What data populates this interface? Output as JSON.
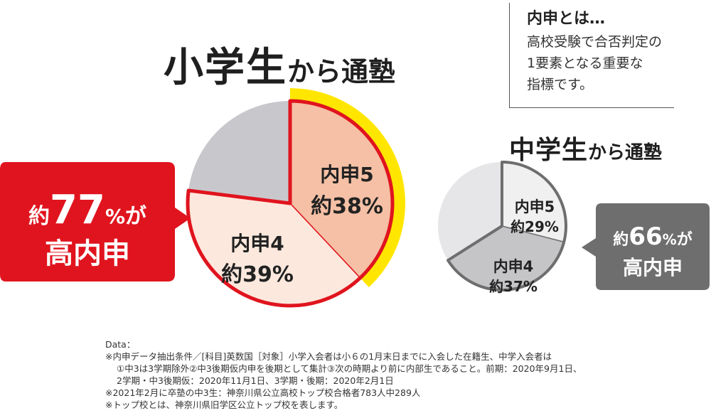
{
  "title_left": {
    "big": "小学生",
    "small": "から通塾"
  },
  "title_right": {
    "big": "中学生",
    "small": "から通塾"
  },
  "definition": {
    "title": "内申とは…",
    "lines": [
      "高校受験で合否判定の",
      "1要素となる重要な",
      "指標です。"
    ]
  },
  "colors": {
    "red": "#e0141e",
    "yellow": "#ffe600",
    "slice5_left": "#f5c0a5",
    "slice4_left": "#fde8dd",
    "other_left": "#c8c8cc",
    "dark_gray": "#6e6e6e",
    "slice5_right": "#f0f0f0",
    "slice4_right": "#c5c5c8",
    "other_right": "#e6e6e8"
  },
  "chart_data": [
    {
      "type": "pie",
      "title": "小学生から通塾",
      "slices": [
        {
          "label": "内申5",
          "value_label": "約38%",
          "value": 38
        },
        {
          "label": "内申4",
          "value_label": "約39%",
          "value": 39
        },
        {
          "label": "",
          "value_label": "",
          "value": 23
        }
      ],
      "callout": {
        "prefix": "約",
        "number": "77",
        "unit": "%",
        "suffix": "が",
        "line2": "高内申"
      }
    },
    {
      "type": "pie",
      "title": "中学生から通塾",
      "slices": [
        {
          "label": "内申5",
          "value_label": "約29%",
          "value": 29
        },
        {
          "label": "内申4",
          "value_label": "約37%",
          "value": 37
        },
        {
          "label": "",
          "value_label": "",
          "value": 34
        }
      ],
      "callout": {
        "prefix": "約",
        "number": "66",
        "unit": "%",
        "suffix": "が",
        "line2": "高内申"
      }
    }
  ],
  "notes": [
    "Data：",
    "※内申データ抽出条件／[科目]英数国［対象］小学入会者は小６の1月末日までに入会した在籍生、中学入会者は",
    "①中3は3学期除外②中3後期仮内申を後期として集計③次の時期より前に内部生であること。前期：2020年9月1日、",
    "2学期・中3後期仮：2020年11月1日、3学期・後期：2020年2月1日",
    "※2021年2月に卒塾の中3生：神奈川県公立高校トップ校合格者783人中289人",
    "※トップ校とは、神奈川県旧学区公立トップ校を表します。"
  ]
}
